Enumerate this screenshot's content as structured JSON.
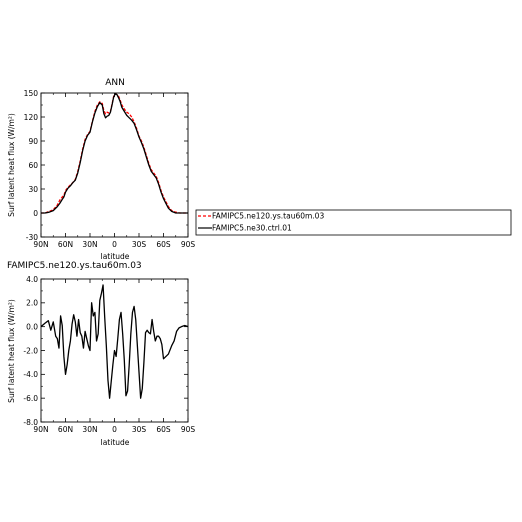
{
  "chart_data": [
    {
      "type": "line",
      "title": "ANN",
      "xlabel": "latitude",
      "ylabel": "Surf latent heat flux (W/m²)",
      "ylim": [
        -30,
        150
      ],
      "yticks": [
        "-30",
        "0",
        "30",
        "60",
        "90",
        "120",
        "150"
      ],
      "xlim": [
        90,
        -90
      ],
      "xticks": [
        "90N",
        "60N",
        "30N",
        "0",
        "30S",
        "60S",
        "90S"
      ],
      "series": [
        {
          "name": "FAMIPC5.ne120.ys.tau60m.03",
          "color": "#ff0000",
          "dash": "dashed",
          "x": [
            90,
            85,
            80,
            75,
            70,
            67,
            64,
            62,
            60,
            57,
            54,
            51,
            48,
            45,
            42,
            39,
            36,
            33,
            30,
            27,
            24,
            21,
            18,
            15,
            13,
            11,
            9,
            7,
            5,
            3,
            1,
            -1,
            -3,
            -5,
            -7,
            -9,
            -12,
            -15,
            -18,
            -21,
            -24,
            -27,
            -30,
            -33,
            -36,
            -39,
            -42,
            -45,
            -48,
            -51,
            -54,
            -57,
            -60,
            -63,
            -66,
            -70,
            -75,
            -80,
            -85,
            -90
          ],
          "y": [
            0,
            0,
            2,
            4,
            10,
            16,
            20,
            22,
            28,
            32,
            35,
            38,
            42,
            52,
            65,
            80,
            92,
            98,
            102,
            115,
            127,
            135,
            139,
            137,
            128,
            124,
            126,
            125,
            127,
            136,
            146,
            149,
            148,
            146,
            141,
            135,
            130,
            126,
            124,
            120,
            114,
            106,
            96,
            90,
            82,
            72,
            62,
            54,
            50,
            46,
            38,
            28,
            20,
            14,
            8,
            3,
            1,
            0,
            0,
            0
          ]
        },
        {
          "name": "FAMIPC5.ne30.ctrl.01",
          "color": "#000000",
          "dash": "solid",
          "x": [
            90,
            85,
            80,
            75,
            70,
            67,
            64,
            62,
            60,
            57,
            54,
            51,
            48,
            45,
            42,
            39,
            36,
            33,
            30,
            27,
            24,
            21,
            18,
            15,
            13,
            11,
            9,
            7,
            5,
            3,
            1,
            -1,
            -3,
            -5,
            -7,
            -9,
            -12,
            -15,
            -18,
            -21,
            -24,
            -27,
            -30,
            -33,
            -36,
            -39,
            -42,
            -45,
            -48,
            -51,
            -54,
            -57,
            -60,
            -63,
            -66,
            -70,
            -75,
            -80,
            -85,
            -90
          ],
          "y": [
            0,
            0,
            1,
            3,
            8,
            12,
            17,
            20,
            26,
            31,
            34,
            38,
            41,
            50,
            63,
            78,
            90,
            97,
            101,
            114,
            125,
            133,
            138,
            135,
            124,
            119,
            121,
            122,
            126,
            135,
            145,
            149,
            148,
            144,
            139,
            132,
            127,
            122,
            119,
            116,
            112,
            104,
            95,
            88,
            80,
            70,
            60,
            52,
            48,
            44,
            36,
            26,
            18,
            12,
            6,
            2,
            0,
            0,
            0,
            0
          ]
        }
      ],
      "legend": "right"
    },
    {
      "type": "line",
      "title": "FAMIPC5.ne120.ys.tau60m.03",
      "xlabel": "latitude",
      "ylabel": "Surf latent heat flux (W/m²)",
      "ylim": [
        -8,
        4
      ],
      "yticks": [
        "-8.0",
        "-6.0",
        "-4.0",
        "-2.0",
        "0.0",
        "2.0",
        "4.0"
      ],
      "xlim": [
        90,
        -90
      ],
      "xticks": [
        "90N",
        "60N",
        "30N",
        "0",
        "30S",
        "60S",
        "90S"
      ],
      "series": [
        {
          "color": "#000000",
          "x": [
            90,
            85,
            81,
            78,
            75,
            72,
            70,
            68,
            66,
            64,
            62,
            60,
            58,
            56,
            54,
            52,
            50,
            48,
            46,
            44,
            42,
            40,
            38,
            36,
            34,
            32,
            30,
            28,
            26,
            24,
            22,
            20,
            18,
            16,
            14,
            12,
            10,
            8,
            6,
            4,
            2,
            0,
            -2,
            -4,
            -6,
            -8,
            -10,
            -12,
            -14,
            -16,
            -18,
            -20,
            -22,
            -24,
            -26,
            -28,
            -30,
            -32,
            -34,
            -36,
            -38,
            -40,
            -42,
            -44,
            -46,
            -48,
            -50,
            -52,
            -54,
            -56,
            -58,
            -60,
            -63,
            -66,
            -70,
            -73,
            -76,
            -79,
            -82,
            -86,
            -90
          ],
          "y": [
            0,
            0.3,
            0.5,
            -0.3,
            0.4,
            -0.8,
            -1.0,
            -1.8,
            0.9,
            0.1,
            -2.5,
            -4.0,
            -3.2,
            -2.0,
            -1.2,
            0.2,
            1.0,
            0.4,
            -0.8,
            0.6,
            -0.5,
            -0.8,
            -1.8,
            -0.4,
            -1.0,
            -1.6,
            -2.0,
            2.0,
            0.9,
            1.2,
            -1.2,
            -0.6,
            2.2,
            2.8,
            3.5,
            0.8,
            -1.6,
            -4.5,
            -6.0,
            -4.6,
            -3.2,
            -2.0,
            -2.5,
            -1.0,
            0.6,
            1.2,
            -0.6,
            -2.8,
            -5.8,
            -5.4,
            -3.2,
            -0.6,
            1.2,
            1.7,
            0.6,
            -1.6,
            -3.8,
            -6.0,
            -5.2,
            -3.0,
            -0.5,
            -0.3,
            -0.5,
            -0.6,
            0.6,
            -0.4,
            -1.2,
            -0.8,
            -0.8,
            -1.0,
            -1.5,
            -2.7,
            -2.5,
            -2.3,
            -1.6,
            -1.2,
            -0.4,
            -0.1,
            0.0,
            0.1,
            0
          ]
        }
      ]
    }
  ]
}
